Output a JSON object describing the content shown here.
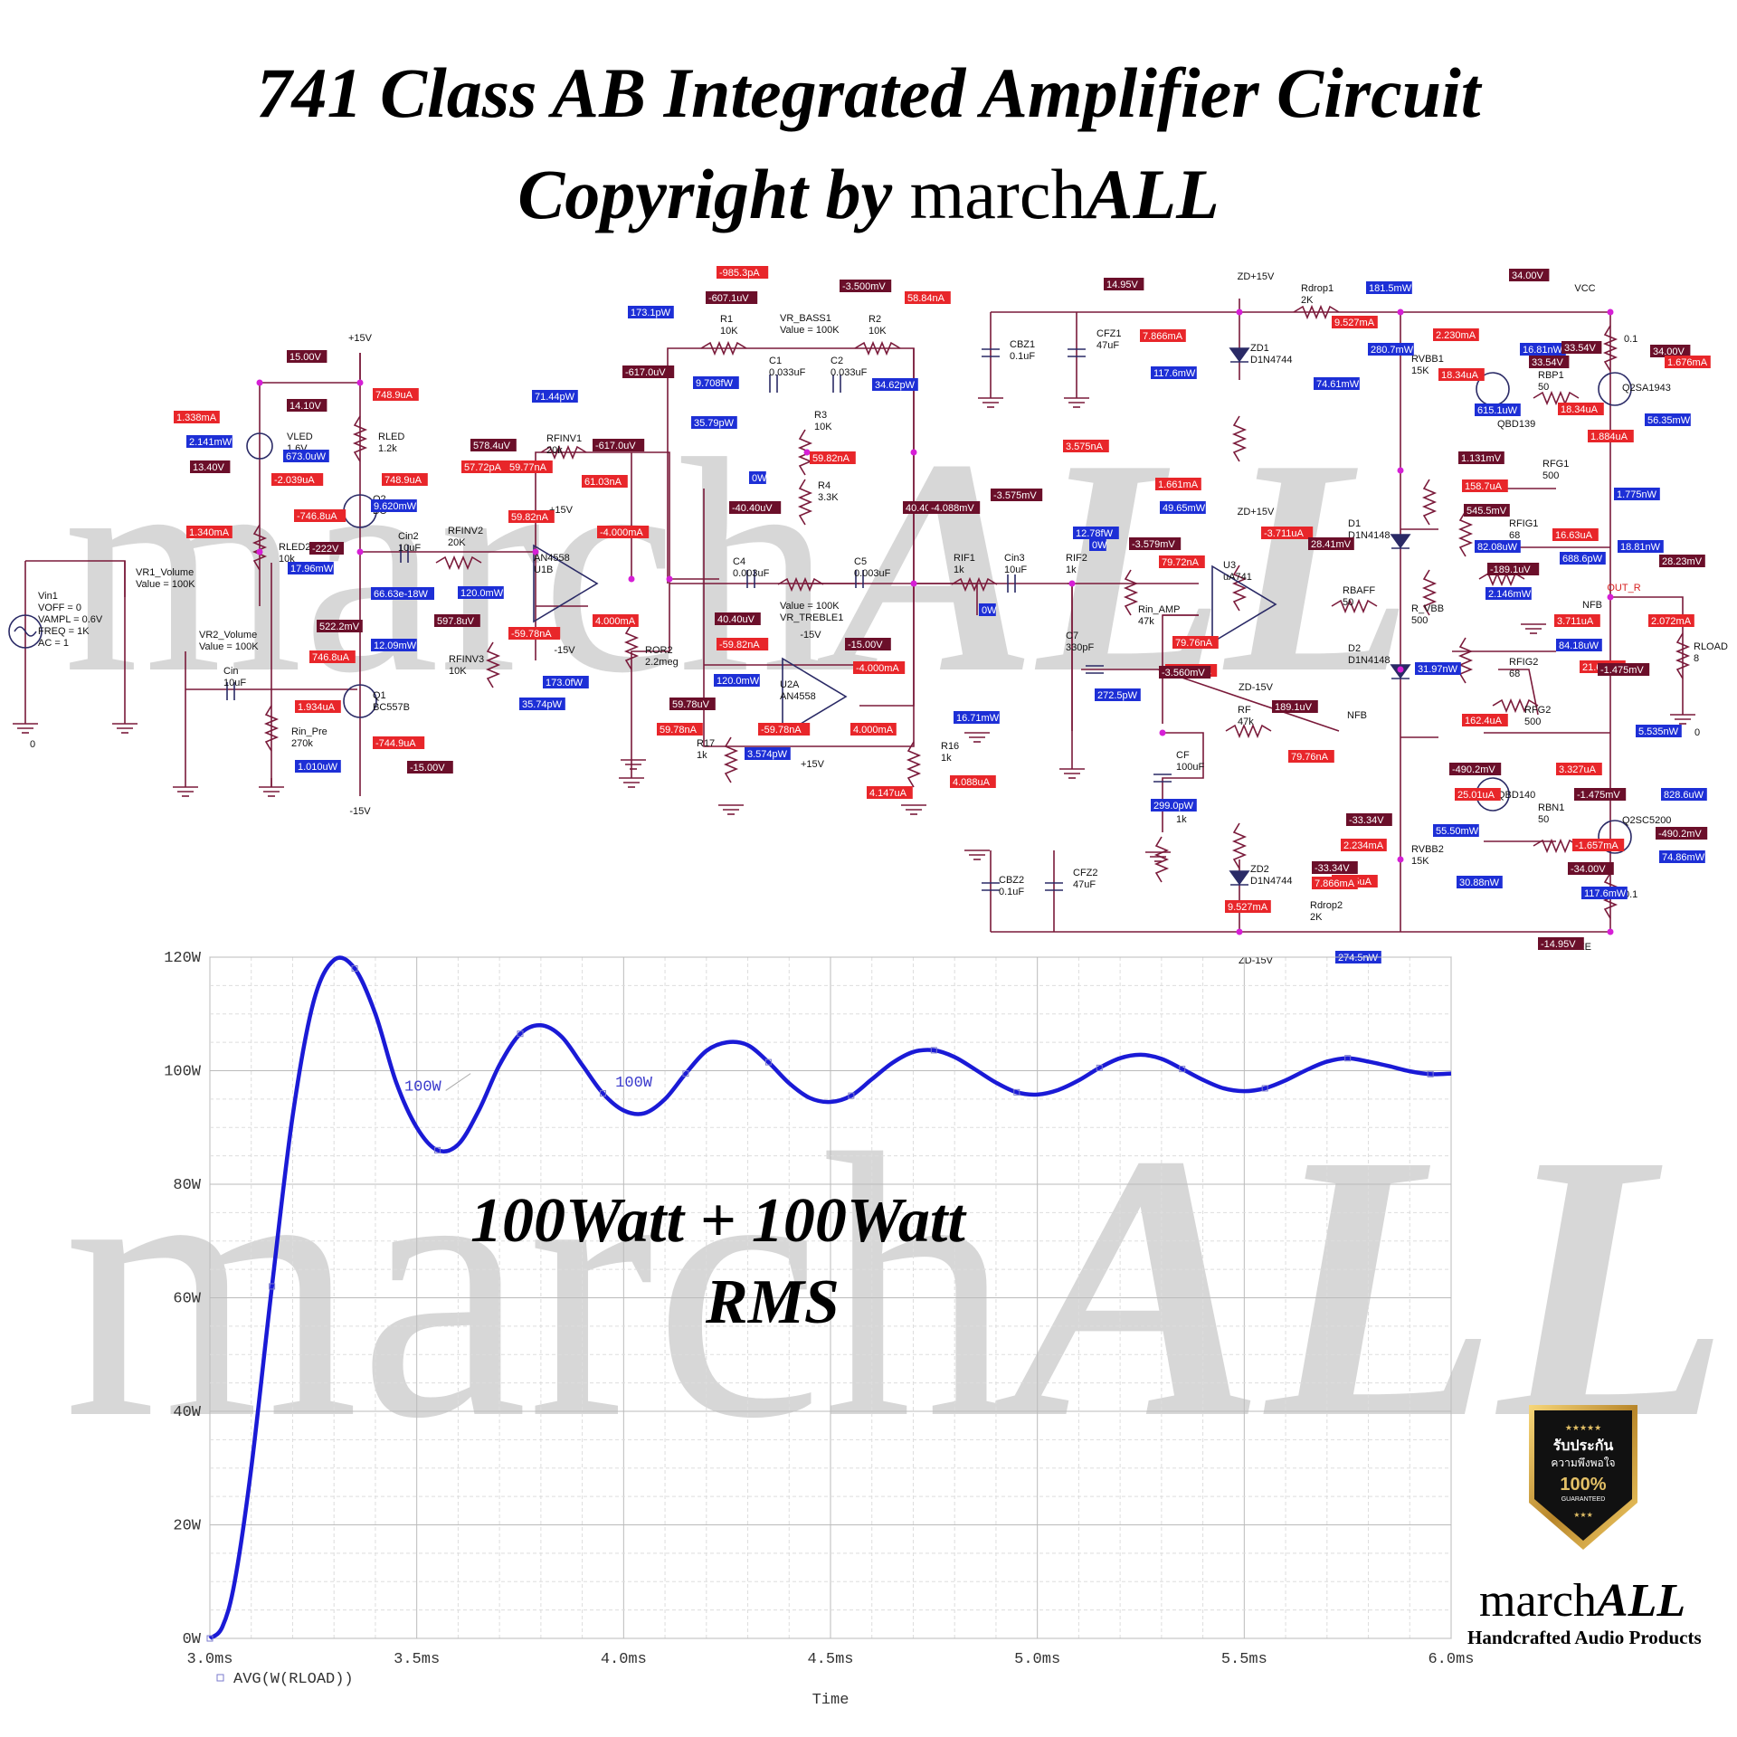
{
  "header": {
    "title": "741 Class AB Integrated Amplifier Circuit",
    "copyright_prefix": "Copyright by",
    "copyright_brand_plain": "march",
    "copyright_brand_bold": "ALL"
  },
  "watermark": {
    "plain": "march",
    "bold": "ALL"
  },
  "schematic": {
    "components": [
      {
        "id": "vin1",
        "lines": [
          "Vin1",
          "VOFF = 0",
          "VAMPL = 0.6V",
          "FREQ = 1K",
          "AC = 1"
        ]
      },
      {
        "id": "vr1",
        "lines": [
          "VR1_Volume",
          "Value = 100K"
        ]
      },
      {
        "id": "vr2",
        "lines": [
          "VR2_Volume",
          "Value = 100K"
        ]
      },
      {
        "id": "cin",
        "lines": [
          "Cin",
          "10uF"
        ]
      },
      {
        "id": "rinpre",
        "lines": [
          "Rin_Pre",
          "270k"
        ]
      },
      {
        "id": "q1",
        "lines": [
          "Q1",
          "BC557B"
        ]
      },
      {
        "id": "q2",
        "lines": [
          "Q2",
          "BC"
        ]
      },
      {
        "id": "vled",
        "lines": [
          "VLED",
          "1.6V"
        ]
      },
      {
        "id": "rled",
        "lines": [
          "RLED",
          "1.2k"
        ]
      },
      {
        "id": "rled2",
        "lines": [
          "RLED2",
          "10k"
        ]
      },
      {
        "id": "cin2",
        "lines": [
          "Cin2",
          "10uF"
        ]
      },
      {
        "id": "rfinv2",
        "lines": [
          "RFINV2",
          "20K"
        ]
      },
      {
        "id": "rfinv1",
        "lines": [
          "RFINV1",
          "20k"
        ]
      },
      {
        "id": "rfinv3",
        "lines": [
          "RFINV3",
          "10K"
        ]
      },
      {
        "id": "u1b",
        "lines": [
          "AN4558",
          "U1B"
        ]
      },
      {
        "id": "ror2",
        "lines": [
          "ROR2",
          "2.2meg"
        ]
      },
      {
        "id": "r1",
        "lines": [
          "R1",
          "10K"
        ]
      },
      {
        "id": "vrbass",
        "lines": [
          "VR_BASS1",
          "Value = 100K"
        ]
      },
      {
        "id": "r2",
        "lines": [
          "R2",
          "10K"
        ]
      },
      {
        "id": "c1",
        "lines": [
          "C1",
          "0.033uF"
        ]
      },
      {
        "id": "c2",
        "lines": [
          "C2",
          "0.033uF"
        ]
      },
      {
        "id": "r3",
        "lines": [
          "R3",
          "10K"
        ]
      },
      {
        "id": "r4",
        "lines": [
          "R4",
          "3.3K"
        ]
      },
      {
        "id": "c4",
        "lines": [
          "C4",
          "0.003uF"
        ]
      },
      {
        "id": "c5",
        "lines": [
          "C5",
          "0.003uF"
        ]
      },
      {
        "id": "vrtreble",
        "lines": [
          "Value = 100K",
          "VR_TREBLE1"
        ]
      },
      {
        "id": "u2a",
        "lines": [
          "U2A",
          "AN4558"
        ]
      },
      {
        "id": "r17",
        "lines": [
          "R17",
          "1k"
        ]
      },
      {
        "id": "r16",
        "lines": [
          "R16",
          "1k"
        ]
      },
      {
        "id": "rif1",
        "lines": [
          "RIF1",
          "1k"
        ]
      },
      {
        "id": "cin3",
        "lines": [
          "Cin3",
          "10uF"
        ]
      },
      {
        "id": "rif2",
        "lines": [
          "RIF2",
          "1k"
        ]
      },
      {
        "id": "rinamp",
        "lines": [
          "Rin_AMP",
          "47k"
        ]
      },
      {
        "id": "c7",
        "lines": [
          "C7",
          "330pF"
        ]
      },
      {
        "id": "u3",
        "lines": [
          "U3",
          "uA741"
        ]
      },
      {
        "id": "rf",
        "lines": [
          "RF",
          "47k"
        ]
      },
      {
        "id": "cf",
        "lines": [
          "CF",
          "100uF"
        ]
      },
      {
        "id": "rfi",
        "lines": [
          "RFI",
          "1k"
        ]
      },
      {
        "id": "cbz1",
        "lines": [
          "CBZ1",
          "0.1uF"
        ]
      },
      {
        "id": "cfz1",
        "lines": [
          "CFZ1",
          "47uF"
        ]
      },
      {
        "id": "zd1",
        "lines": [
          "ZD1",
          "D1N4744"
        ]
      },
      {
        "id": "rdrop1",
        "lines": [
          "Rdrop1",
          "2K"
        ]
      },
      {
        "id": "cbz2",
        "lines": [
          "CBZ2",
          "0.1uF"
        ]
      },
      {
        "id": "cfz2",
        "lines": [
          "CFZ2",
          "47uF"
        ]
      },
      {
        "id": "zd2",
        "lines": [
          "ZD2",
          "D1N4744"
        ]
      },
      {
        "id": "rdrop2",
        "lines": [
          "Rdrop2",
          "2K"
        ]
      },
      {
        "id": "rvbb1",
        "lines": [
          "RVBB1",
          "15K"
        ]
      },
      {
        "id": "rvbb2",
        "lines": [
          "RVBB2",
          "15K"
        ]
      },
      {
        "id": "d1",
        "lines": [
          "D1",
          "D1N4148"
        ]
      },
      {
        "id": "d2",
        "lines": [
          "D2",
          "D1N4148"
        ]
      },
      {
        "id": "rbaff",
        "lines": [
          "RBAFF",
          "50"
        ]
      },
      {
        "id": "rvbbpot",
        "lines": [
          "R_VBB",
          "500"
        ]
      },
      {
        "id": "qbd139",
        "lines": [
          "QBD139"
        ]
      },
      {
        "id": "qbd140",
        "lines": [
          "QBD140"
        ]
      },
      {
        "id": "rbp1",
        "lines": [
          "RBP1",
          "50"
        ]
      },
      {
        "id": "rbn1",
        "lines": [
          "RBN1",
          "50"
        ]
      },
      {
        "id": "rfg1",
        "lines": [
          "RFG1",
          "500"
        ]
      },
      {
        "id": "rfg2",
        "lines": [
          "RFG2",
          "500"
        ]
      },
      {
        "id": "rfig1",
        "lines": [
          "RFIG1",
          "68"
        ]
      },
      {
        "id": "rfig2",
        "lines": [
          "RFIG2",
          "68"
        ]
      },
      {
        "id": "q2sa",
        "lines": [
          "Q2SA1943"
        ]
      },
      {
        "id": "q2sc",
        "lines": [
          "Q2SC5200"
        ]
      },
      {
        "id": "re1",
        "lines": [
          "0.1"
        ]
      },
      {
        "id": "re2",
        "lines": [
          "0.1"
        ]
      },
      {
        "id": "rload",
        "lines": [
          "RLOAD",
          "8"
        ]
      }
    ],
    "net_labels": [
      "+15V",
      "-15V",
      "+15V",
      "-15V",
      "+15V",
      "-15V",
      "ZD+15V",
      "ZD-15V",
      "ZD+15V",
      "ZD-15V",
      "VCC",
      "VEE",
      "NFB",
      "NFB",
      "OUT_R",
      "0",
      "0"
    ],
    "probes": [
      {
        "t": "15.00V",
        "c": "#6b0f2a"
      },
      {
        "t": "748.9uA",
        "c": "#e8262a"
      },
      {
        "t": "1.338mA",
        "c": "#e8262a"
      },
      {
        "t": "14.10V",
        "c": "#6b0f2a"
      },
      {
        "t": "2.141mW",
        "c": "#1d2fd6"
      },
      {
        "t": "673.0uW",
        "c": "#1d2fd6"
      },
      {
        "t": "13.40V",
        "c": "#6b0f2a"
      },
      {
        "t": "-2.039uA",
        "c": "#e8262a"
      },
      {
        "t": "748.9uA",
        "c": "#e8262a"
      },
      {
        "t": "-746.8uA",
        "c": "#e8262a"
      },
      {
        "t": "9.620mW",
        "c": "#1d2fd6"
      },
      {
        "t": "1.340mA",
        "c": "#e8262a"
      },
      {
        "t": "-222V",
        "c": "#6b0f2a"
      },
      {
        "t": "17.96mW",
        "c": "#1d2fd6"
      },
      {
        "t": "522.2mV",
        "c": "#6b0f2a"
      },
      {
        "t": "746.8uA",
        "c": "#e8262a"
      },
      {
        "t": "12.09mW",
        "c": "#1d2fd6"
      },
      {
        "t": "1.934uA",
        "c": "#e8262a"
      },
      {
        "t": "-744.9uA",
        "c": "#e8262a"
      },
      {
        "t": "1.010uW",
        "c": "#1d2fd6"
      },
      {
        "t": "-15.00V",
        "c": "#6b0f2a"
      },
      {
        "t": "578.4uV",
        "c": "#6b0f2a"
      },
      {
        "t": "57.72pA",
        "c": "#e8262a"
      },
      {
        "t": "59.77nA",
        "c": "#e8262a"
      },
      {
        "t": "71.44pW",
        "c": "#1d2fd6"
      },
      {
        "t": "-617.0uV",
        "c": "#6b0f2a"
      },
      {
        "t": "61.03nA",
        "c": "#e8262a"
      },
      {
        "t": "59.82nA",
        "c": "#e8262a"
      },
      {
        "t": "-4.000mA",
        "c": "#e8262a"
      },
      {
        "t": "66.63e-18W",
        "c": "#1d2fd6"
      },
      {
        "t": "120.0mW",
        "c": "#1d2fd6"
      },
      {
        "t": "597.8uV",
        "c": "#6b0f2a"
      },
      {
        "t": "-59.78nA",
        "c": "#e8262a"
      },
      {
        "t": "4.000mA",
        "c": "#e8262a"
      },
      {
        "t": "35.74pW",
        "c": "#1d2fd6"
      },
      {
        "t": "173.0fW",
        "c": "#1d2fd6"
      },
      {
        "t": "-985.3pA",
        "c": "#e8262a"
      },
      {
        "t": "-607.1uV",
        "c": "#6b0f2a"
      },
      {
        "t": "-3.500mV",
        "c": "#6b0f2a"
      },
      {
        "t": "58.84nA",
        "c": "#e8262a"
      },
      {
        "t": "173.1pW",
        "c": "#1d2fd6"
      },
      {
        "t": "-617.0uV",
        "c": "#6b0f2a"
      },
      {
        "t": "9.708fW",
        "c": "#1d2fd6"
      },
      {
        "t": "34.62pW",
        "c": "#1d2fd6"
      },
      {
        "t": "35.79pW",
        "c": "#1d2fd6"
      },
      {
        "t": "59.82nA",
        "c": "#e8262a"
      },
      {
        "t": "0W",
        "c": "#1d2fd6"
      },
      {
        "t": "-40.40uV",
        "c": "#6b0f2a"
      },
      {
        "t": "40.40uV",
        "c": "#6b0f2a"
      },
      {
        "t": "-4.088mV",
        "c": "#6b0f2a"
      },
      {
        "t": "-59.82nA",
        "c": "#e8262a"
      },
      {
        "t": "-15.00V",
        "c": "#6b0f2a"
      },
      {
        "t": "40.40uV",
        "c": "#6b0f2a"
      },
      {
        "t": "120.0mW",
        "c": "#1d2fd6"
      },
      {
        "t": "-4.000mA",
        "c": "#e8262a"
      },
      {
        "t": "59.78uV",
        "c": "#6b0f2a"
      },
      {
        "t": "59.78nA",
        "c": "#e8262a"
      },
      {
        "t": "-59.78nA",
        "c": "#e8262a"
      },
      {
        "t": "4.000mA",
        "c": "#e8262a"
      },
      {
        "t": "3.574pW",
        "c": "#1d2fd6"
      },
      {
        "t": "16.71mW",
        "c": "#1d2fd6"
      },
      {
        "t": "4.147uA",
        "c": "#e8262a"
      },
      {
        "t": "4.088uA",
        "c": "#e8262a"
      },
      {
        "t": "-3.575mV",
        "c": "#6b0f2a"
      },
      {
        "t": "3.575nA",
        "c": "#e8262a"
      },
      {
        "t": "0W",
        "c": "#1d2fd6"
      },
      {
        "t": "12.78fW",
        "c": "#1d2fd6"
      },
      {
        "t": "-3.579mV",
        "c": "#6b0f2a"
      },
      {
        "t": "1.661mA",
        "c": "#e8262a"
      },
      {
        "t": "49.65mW",
        "c": "#1d2fd6"
      },
      {
        "t": "-3.711uA",
        "c": "#e8262a"
      },
      {
        "t": "28.41mV",
        "c": "#6b0f2a"
      },
      {
        "t": "79.72nA",
        "c": "#e8262a"
      },
      {
        "t": "79.76nA",
        "c": "#e8262a"
      },
      {
        "t": "-1.661mA",
        "c": "#e8262a"
      },
      {
        "t": "-3.560mV",
        "c": "#6b0f2a"
      },
      {
        "t": "272.5pW",
        "c": "#1d2fd6"
      },
      {
        "t": "189.1uV",
        "c": "#6b0f2a"
      },
      {
        "t": "79.76nA",
        "c": "#e8262a"
      },
      {
        "t": "299.0pW",
        "c": "#1d2fd6"
      },
      {
        "t": "0W",
        "c": "#1d2fd6"
      },
      {
        "t": "14.95V",
        "c": "#6b0f2a"
      },
      {
        "t": "7.866mA",
        "c": "#e8262a"
      },
      {
        "t": "117.6mW",
        "c": "#1d2fd6"
      },
      {
        "t": "181.5mW",
        "c": "#1d2fd6"
      },
      {
        "t": "9.527mA",
        "c": "#e8262a"
      },
      {
        "t": "74.61mW",
        "c": "#1d2fd6"
      },
      {
        "t": "34.00V",
        "c": "#6b0f2a"
      },
      {
        "t": "2.230mA",
        "c": "#e8262a"
      },
      {
        "t": "280.7mW",
        "c": "#1d2fd6"
      },
      {
        "t": "16.81nW",
        "c": "#1d2fd6"
      },
      {
        "t": "33.54V",
        "c": "#6b0f2a"
      },
      {
        "t": "34.00V",
        "c": "#6b0f2a"
      },
      {
        "t": "33.54V",
        "c": "#6b0f2a"
      },
      {
        "t": "18.34uA",
        "c": "#e8262a"
      },
      {
        "t": "1.676mA",
        "c": "#e8262a"
      },
      {
        "t": "615.1uW",
        "c": "#1d2fd6"
      },
      {
        "t": "18.34uA",
        "c": "#e8262a"
      },
      {
        "t": "56.35mW",
        "c": "#1d2fd6"
      },
      {
        "t": "1.884uA",
        "c": "#e8262a"
      },
      {
        "t": "1.131mV",
        "c": "#6b0f2a"
      },
      {
        "t": "158.7uA",
        "c": "#e8262a"
      },
      {
        "t": "545.5mV",
        "c": "#6b0f2a"
      },
      {
        "t": "1.775nW",
        "c": "#1d2fd6"
      },
      {
        "t": "82.08uW",
        "c": "#1d2fd6"
      },
      {
        "t": "16.63uA",
        "c": "#e8262a"
      },
      {
        "t": "18.81nW",
        "c": "#1d2fd6"
      },
      {
        "t": "688.6pW",
        "c": "#1d2fd6"
      },
      {
        "t": "28.23mV",
        "c": "#6b0f2a"
      },
      {
        "t": "-189.1uV",
        "c": "#6b0f2a"
      },
      {
        "t": "2.146mW",
        "c": "#1d2fd6"
      },
      {
        "t": "3.711uA",
        "c": "#e8262a"
      },
      {
        "t": "2.072mA",
        "c": "#e8262a"
      },
      {
        "t": "84.18uW",
        "c": "#1d2fd6"
      },
      {
        "t": "21.68uA",
        "c": "#e8262a"
      },
      {
        "t": "31.97nW",
        "c": "#1d2fd6"
      },
      {
        "t": "-1.475mV",
        "c": "#6b0f2a"
      },
      {
        "t": "162.4uA",
        "c": "#e8262a"
      },
      {
        "t": "5.535nW",
        "c": "#1d2fd6"
      },
      {
        "t": "-490.2mV",
        "c": "#6b0f2a"
      },
      {
        "t": "3.327uA",
        "c": "#e8262a"
      },
      {
        "t": "25.01uA",
        "c": "#e8262a"
      },
      {
        "t": "-1.475mV",
        "c": "#6b0f2a"
      },
      {
        "t": "828.6uW",
        "c": "#1d2fd6"
      },
      {
        "t": "-33.34V",
        "c": "#6b0f2a"
      },
      {
        "t": "55.50mW",
        "c": "#1d2fd6"
      },
      {
        "t": "-490.2mV",
        "c": "#6b0f2a"
      },
      {
        "t": "2.234mA",
        "c": "#e8262a"
      },
      {
        "t": "-1.657mA",
        "c": "#e8262a"
      },
      {
        "t": "74.86mW",
        "c": "#1d2fd6"
      },
      {
        "t": "30.88nW",
        "c": "#1d2fd6"
      },
      {
        "t": "-34.00V",
        "c": "#6b0f2a"
      },
      {
        "t": "-33.34V",
        "c": "#6b0f2a"
      },
      {
        "t": "24.85uA",
        "c": "#e8262a"
      },
      {
        "t": "7.866mA",
        "c": "#e8262a"
      },
      {
        "t": "117.6mW",
        "c": "#1d2fd6"
      },
      {
        "t": "9.527mA",
        "c": "#e8262a"
      },
      {
        "t": "274.5nW",
        "c": "#1d2fd6"
      },
      {
        "t": "-14.95V",
        "c": "#6b0f2a"
      },
      {
        "t": "181.5mW",
        "c": "#1d2fd6"
      },
      {
        "t": "-34.00V",
        "c": "#6b0f2a"
      }
    ]
  },
  "chart_data": {
    "type": "line",
    "xlabel": "Time",
    "ylabel": "",
    "x_ticks": [
      "3.0ms",
      "3.5ms",
      "4.0ms",
      "4.5ms",
      "5.0ms",
      "5.5ms",
      "6.0ms"
    ],
    "y_ticks": [
      "0W",
      "20W",
      "40W",
      "60W",
      "80W",
      "100W",
      "120W"
    ],
    "xlim": [
      3.0,
      6.0
    ],
    "ylim": [
      0,
      120
    ],
    "grid": true,
    "legend": "bottom-left",
    "annotations": [
      "100W",
      "100W"
    ],
    "series": [
      {
        "name": "AVG(W(RLOAD))",
        "color": "#1a1ad6",
        "x": [
          3.0,
          3.03,
          3.06,
          3.1,
          3.15,
          3.2,
          3.25,
          3.3,
          3.35,
          3.4,
          3.45,
          3.5,
          3.55,
          3.6,
          3.65,
          3.7,
          3.75,
          3.8,
          3.85,
          3.9,
          3.95,
          4.0,
          4.05,
          4.1,
          4.15,
          4.2,
          4.25,
          4.3,
          4.35,
          4.4,
          4.45,
          4.5,
          4.55,
          4.6,
          4.65,
          4.7,
          4.75,
          4.8,
          4.85,
          4.9,
          4.95,
          5.0,
          5.05,
          5.1,
          5.15,
          5.2,
          5.25,
          5.3,
          5.35,
          5.4,
          5.45,
          5.5,
          5.55,
          5.6,
          5.65,
          5.7,
          5.75,
          5.8,
          5.85,
          5.9,
          5.95,
          6.0
        ],
        "y": [
          0,
          2,
          10,
          30,
          62,
          92,
          112,
          119.5,
          118,
          110,
          98,
          90,
          86,
          87,
          93,
          101,
          106.5,
          108,
          106,
          101,
          96,
          93,
          92.5,
          95,
          99.5,
          103.5,
          105,
          104.5,
          101.5,
          97.8,
          95.2,
          94.5,
          95.6,
          98.5,
          101.4,
          103.3,
          103.6,
          102.4,
          100.2,
          97.9,
          96.2,
          95.8,
          96.6,
          98.3,
          100.5,
          102.2,
          102.8,
          102.1,
          100.3,
          98.4,
          96.9,
          96.4,
          96.9,
          98.3,
          100.1,
          101.6,
          102.2,
          101.6,
          100.8,
          99.9,
          99.4,
          99.5
        ]
      }
    ]
  },
  "overlay": {
    "line1": "100Watt + 100Watt",
    "line2": "RMS"
  },
  "brand": {
    "name_plain": "march",
    "name_bold": "ALL",
    "tagline": "Handcrafted Audio Products",
    "badge_lines": [
      "รับประกัน",
      "ความพึงพอใจ",
      "100%",
      "GUARANTEED"
    ],
    "badge_stars": "★★★★★",
    "badge_stars_bottom": "★★★"
  }
}
